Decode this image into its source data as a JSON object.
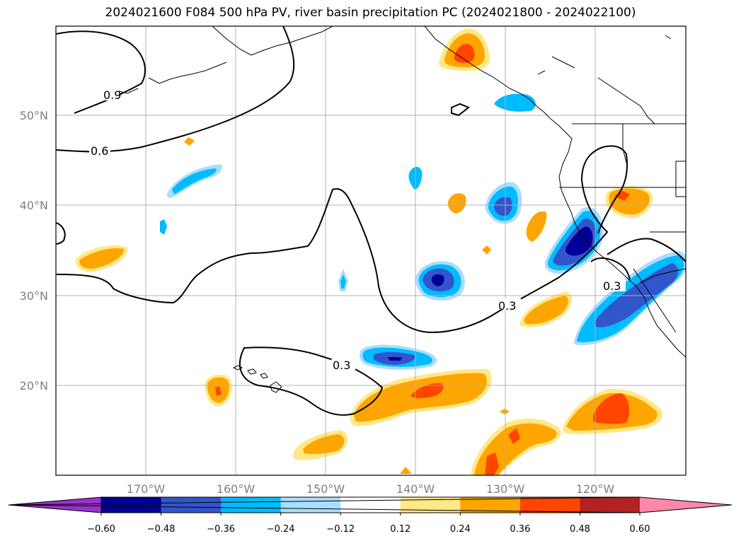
{
  "title": "2024021600 F084 500 hPa PV, river basin precipitation PC (2024021800 - 2024022100)",
  "lat_labels": [
    "50°N",
    "40°N",
    "30°N",
    "20°N"
  ],
  "lon_labels": [
    "170°W",
    "160°W",
    "150°W",
    "140°W",
    "130°W",
    "120°W"
  ],
  "contour_labels": [
    "0.9",
    "0.6",
    "0.3",
    "0.3",
    "0.3"
  ],
  "colorbar": {
    "ticks": [
      "−0.60",
      "−0.48",
      "−0.36",
      "−0.24",
      "−0.12",
      "0.12",
      "0.24",
      "0.36",
      "0.48",
      "0.60"
    ],
    "colors": [
      "#9933cc",
      "#000099",
      "#3355cc",
      "#00bbff",
      "#aaddff",
      "#ffffff",
      "#ffe888",
      "#ffa500",
      "#ff4500",
      "#b22222",
      "#ff88aa"
    ]
  },
  "colors": {
    "neg_light": "#aaddff",
    "neg_mid": "#00bbff",
    "neg_strong": "#3355cc",
    "neg_max": "#000099",
    "pos_light": "#ffe888",
    "pos_mid": "#ffa500",
    "pos_strong": "#ff4500",
    "pos_max": "#b22222"
  }
}
